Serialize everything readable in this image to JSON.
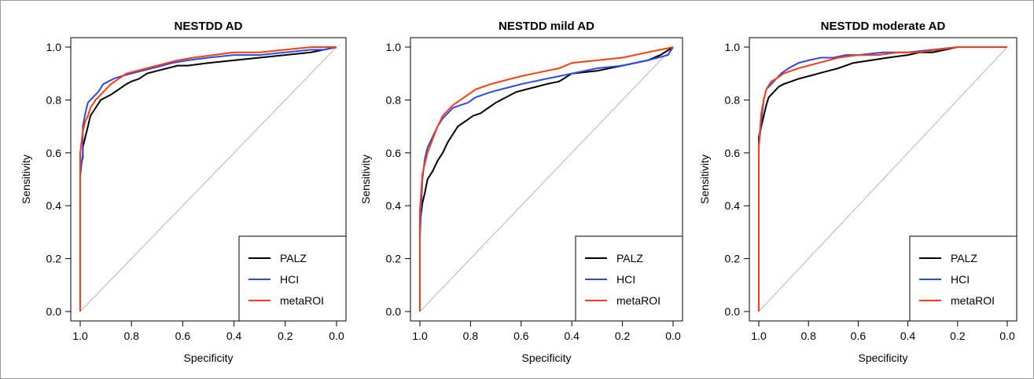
{
  "chart_data": [
    {
      "type": "line",
      "title": "NESTDD AD",
      "xlabel": "Specificity",
      "ylabel": "Sensitivity",
      "xlim": [
        1.0,
        0.0
      ],
      "ylim": [
        0.0,
        1.0
      ],
      "x_ticks": [
        "1.0",
        "0.8",
        "0.6",
        "0.4",
        "0.2",
        "0.0"
      ],
      "y_ticks": [
        "0.0",
        "0.2",
        "0.4",
        "0.6",
        "0.8",
        "1.0"
      ],
      "diagonal": true,
      "legend_position": "bottom-right",
      "series": [
        {
          "name": "PALZ",
          "color": "#000000",
          "x": [
            1.0,
            1.0,
            0.99,
            0.99,
            0.98,
            0.97,
            0.96,
            0.94,
            0.92,
            0.9,
            0.88,
            0.85,
            0.82,
            0.8,
            0.77,
            0.74,
            0.7,
            0.66,
            0.62,
            0.58,
            0.5,
            0.4,
            0.3,
            0.2,
            0.1,
            0.05,
            0.0
          ],
          "y": [
            0.0,
            0.55,
            0.58,
            0.62,
            0.66,
            0.7,
            0.74,
            0.77,
            0.8,
            0.81,
            0.82,
            0.84,
            0.86,
            0.87,
            0.88,
            0.9,
            0.91,
            0.92,
            0.93,
            0.93,
            0.94,
            0.95,
            0.96,
            0.97,
            0.98,
            0.99,
            1.0
          ]
        },
        {
          "name": "HCI",
          "color": "#2b4be8",
          "x": [
            1.0,
            1.0,
            0.99,
            0.99,
            0.98,
            0.97,
            0.95,
            0.93,
            0.91,
            0.89,
            0.87,
            0.84,
            0.8,
            0.76,
            0.72,
            0.68,
            0.64,
            0.58,
            0.5,
            0.4,
            0.3,
            0.2,
            0.1,
            0.05,
            0.0
          ],
          "y": [
            0.0,
            0.51,
            0.6,
            0.7,
            0.75,
            0.79,
            0.81,
            0.83,
            0.86,
            0.87,
            0.88,
            0.89,
            0.9,
            0.91,
            0.92,
            0.93,
            0.94,
            0.95,
            0.96,
            0.97,
            0.97,
            0.98,
            0.99,
            0.99,
            1.0
          ]
        },
        {
          "name": "metaROI",
          "color": "#ff3b0f",
          "x": [
            1.0,
            1.0,
            0.99,
            0.98,
            0.97,
            0.96,
            0.94,
            0.92,
            0.9,
            0.88,
            0.85,
            0.82,
            0.78,
            0.74,
            0.7,
            0.66,
            0.62,
            0.56,
            0.48,
            0.4,
            0.3,
            0.2,
            0.1,
            0.0
          ],
          "y": [
            0.0,
            0.6,
            0.68,
            0.72,
            0.74,
            0.77,
            0.8,
            0.82,
            0.84,
            0.86,
            0.88,
            0.9,
            0.91,
            0.92,
            0.93,
            0.94,
            0.95,
            0.96,
            0.97,
            0.98,
            0.98,
            0.99,
            1.0,
            1.0
          ]
        }
      ]
    },
    {
      "type": "line",
      "title": "NESTDD mild AD",
      "xlabel": "Specificity",
      "ylabel": "Sensitivity",
      "xlim": [
        1.0,
        0.0
      ],
      "ylim": [
        0.0,
        1.0
      ],
      "x_ticks": [
        "1.0",
        "0.8",
        "0.6",
        "0.4",
        "0.2",
        "0.0"
      ],
      "y_ticks": [
        "0.0",
        "0.2",
        "0.4",
        "0.6",
        "0.8",
        "1.0"
      ],
      "diagonal": true,
      "legend_position": "bottom-right",
      "series": [
        {
          "name": "PALZ",
          "color": "#000000",
          "x": [
            1.0,
            1.0,
            0.99,
            0.98,
            0.97,
            0.95,
            0.93,
            0.91,
            0.89,
            0.87,
            0.85,
            0.82,
            0.79,
            0.76,
            0.73,
            0.7,
            0.66,
            0.62,
            0.58,
            0.54,
            0.5,
            0.45,
            0.4,
            0.3,
            0.2,
            0.1,
            0.05,
            0.0
          ],
          "y": [
            0.0,
            0.33,
            0.41,
            0.45,
            0.5,
            0.53,
            0.57,
            0.6,
            0.64,
            0.67,
            0.7,
            0.72,
            0.74,
            0.75,
            0.77,
            0.79,
            0.81,
            0.83,
            0.84,
            0.85,
            0.86,
            0.87,
            0.9,
            0.91,
            0.93,
            0.95,
            0.97,
            1.0
          ]
        },
        {
          "name": "HCI",
          "color": "#2b4be8",
          "x": [
            1.0,
            1.0,
            0.99,
            0.98,
            0.97,
            0.95,
            0.93,
            0.91,
            0.89,
            0.87,
            0.84,
            0.81,
            0.78,
            0.75,
            0.72,
            0.68,
            0.64,
            0.6,
            0.55,
            0.5,
            0.45,
            0.4,
            0.3,
            0.2,
            0.1,
            0.02,
            0.0
          ],
          "y": [
            0.0,
            0.28,
            0.5,
            0.58,
            0.62,
            0.66,
            0.7,
            0.73,
            0.75,
            0.77,
            0.78,
            0.79,
            0.81,
            0.82,
            0.83,
            0.84,
            0.85,
            0.86,
            0.87,
            0.88,
            0.89,
            0.9,
            0.92,
            0.93,
            0.95,
            0.97,
            1.0
          ]
        },
        {
          "name": "metaROI",
          "color": "#ff3b0f",
          "x": [
            1.0,
            1.0,
            0.99,
            0.98,
            0.97,
            0.95,
            0.93,
            0.91,
            0.89,
            0.87,
            0.84,
            0.81,
            0.78,
            0.75,
            0.72,
            0.68,
            0.64,
            0.6,
            0.55,
            0.5,
            0.45,
            0.4,
            0.3,
            0.2,
            0.1,
            0.05,
            0.0
          ],
          "y": [
            0.0,
            0.38,
            0.52,
            0.56,
            0.6,
            0.65,
            0.7,
            0.74,
            0.76,
            0.78,
            0.8,
            0.82,
            0.84,
            0.85,
            0.86,
            0.87,
            0.88,
            0.89,
            0.9,
            0.91,
            0.92,
            0.94,
            0.95,
            0.96,
            0.98,
            0.99,
            1.0
          ]
        }
      ]
    },
    {
      "type": "line",
      "title": "NESTDD moderate AD",
      "xlabel": "Specificity",
      "ylabel": "Sensitivity",
      "xlim": [
        1.0,
        0.0
      ],
      "ylim": [
        0.0,
        1.0
      ],
      "x_ticks": [
        "1.0",
        "0.8",
        "0.6",
        "0.4",
        "0.2",
        "0.0"
      ],
      "y_ticks": [
        "0.0",
        "0.2",
        "0.4",
        "0.6",
        "0.8",
        "1.0"
      ],
      "diagonal": true,
      "legend_position": "bottom-right",
      "series": [
        {
          "name": "PALZ",
          "color": "#000000",
          "x": [
            1.0,
            1.0,
            0.99,
            0.98,
            0.97,
            0.96,
            0.94,
            0.92,
            0.9,
            0.87,
            0.84,
            0.8,
            0.76,
            0.72,
            0.68,
            0.62,
            0.55,
            0.48,
            0.4,
            0.35,
            0.3,
            0.25,
            0.2,
            0.1,
            0.0
          ],
          "y": [
            0.0,
            0.66,
            0.7,
            0.74,
            0.78,
            0.81,
            0.83,
            0.85,
            0.86,
            0.87,
            0.88,
            0.89,
            0.9,
            0.91,
            0.92,
            0.94,
            0.95,
            0.96,
            0.97,
            0.98,
            0.98,
            0.99,
            1.0,
            1.0,
            1.0
          ]
        },
        {
          "name": "HCI",
          "color": "#2b4be8",
          "x": [
            1.0,
            1.0,
            0.99,
            0.98,
            0.97,
            0.95,
            0.93,
            0.91,
            0.88,
            0.84,
            0.8,
            0.75,
            0.7,
            0.65,
            0.6,
            0.5,
            0.4,
            0.3,
            0.2,
            0.1,
            0.0
          ],
          "y": [
            0.0,
            0.62,
            0.72,
            0.8,
            0.84,
            0.86,
            0.88,
            0.9,
            0.92,
            0.94,
            0.95,
            0.96,
            0.96,
            0.97,
            0.97,
            0.98,
            0.98,
            0.99,
            1.0,
            1.0,
            1.0
          ]
        },
        {
          "name": "metaROI",
          "color": "#ff3b0f",
          "x": [
            1.0,
            1.0,
            0.99,
            0.98,
            0.97,
            0.95,
            0.93,
            0.9,
            0.87,
            0.84,
            0.8,
            0.76,
            0.72,
            0.68,
            0.6,
            0.52,
            0.44,
            0.36,
            0.28,
            0.2,
            0.1,
            0.0
          ],
          "y": [
            0.0,
            0.63,
            0.75,
            0.8,
            0.84,
            0.87,
            0.88,
            0.9,
            0.91,
            0.92,
            0.93,
            0.94,
            0.95,
            0.96,
            0.97,
            0.97,
            0.98,
            0.98,
            0.99,
            1.0,
            1.0,
            1.0
          ]
        }
      ]
    }
  ]
}
